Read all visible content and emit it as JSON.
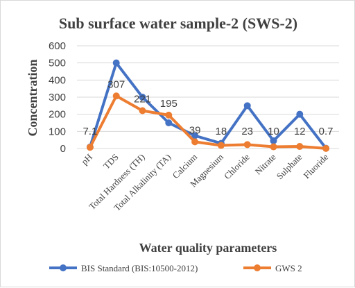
{
  "chart_data": {
    "type": "line",
    "title": "Sub surface water sample-2 (SWS-2)",
    "xlabel": "Water quality parameters",
    "ylabel": "Concentration",
    "ylim": [
      0,
      600
    ],
    "yticks": [
      0,
      100,
      200,
      300,
      400,
      500,
      600
    ],
    "grid": "horizontal",
    "legend_position": "bottom",
    "categories": [
      "pH",
      "TDS",
      "Total Hardness (TH)",
      "Total Alkalinity (TA)",
      "Calcium",
      "Magnesium",
      "Chloride",
      "Nitrate",
      "Sulphate",
      "Fluoride"
    ],
    "series": [
      {
        "name": "BIS Standard (BIS:10500-2012)",
        "color": "#4472c4",
        "values": [
          8.5,
          500,
          300,
          150,
          75,
          30,
          250,
          45,
          200,
          1.5
        ],
        "show_labels": false
      },
      {
        "name": "GWS 2",
        "color": "#ed7d31",
        "values": [
          7.1,
          307,
          221,
          195,
          39,
          18,
          23,
          10,
          12,
          0.7
        ],
        "data_labels": [
          "7.1",
          "307",
          "221",
          "195",
          "39",
          "18",
          "23",
          "10",
          "12",
          "0.7"
        ],
        "show_labels": true
      }
    ]
  }
}
